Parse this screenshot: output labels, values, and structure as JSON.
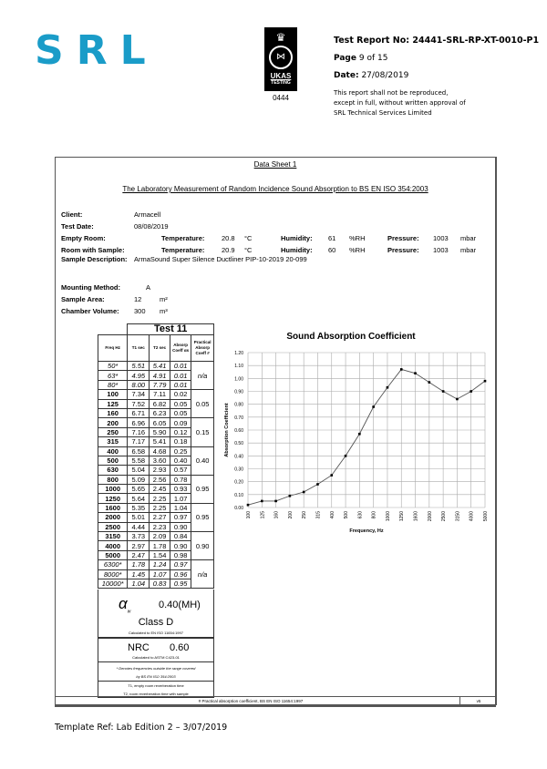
{
  "header": {
    "logo_text": "SRL",
    "ukas_text": "UKAS",
    "ukas_sub": "TESTING",
    "ukas_number": "0444",
    "report_no": "Test Report No: 24441-SRL-RP-XT-0010-P1",
    "page_label": "Page",
    "page_value": "9 of 15",
    "date_label": "Date:",
    "date_value": "27/08/2019",
    "disclaimer": [
      "This report shall not be reproduced,",
      "except in full, without written approval of",
      "SRL Technical Services Limited"
    ]
  },
  "sheet": {
    "title": "Data Sheet 1",
    "subtitle": "The Laboratory Measurement of Random Incidence Sound Absorption to BS EN ISO 354:2003",
    "client_label": "Client:",
    "client": "Armacell",
    "test_date_label": "Test Date:",
    "test_date": "08/08/2019",
    "empty_room_label": "Empty Room:",
    "room_sample_label": "Room with Sample:",
    "temp_label": "Temperature:",
    "hum_label": "Humidity:",
    "pres_label": "Pressure:",
    "temp_unit": "°C",
    "hum_unit": "%RH",
    "pres_unit": "mbar",
    "empty": {
      "temp": "20.8",
      "hum": "61",
      "pres": "1003"
    },
    "sample": {
      "temp": "20.9",
      "hum": "60",
      "pres": "1003"
    },
    "desc_label": "Sample Description:",
    "desc": "ArmaSound Super Silence Ductliner PIP-10-2019 20-099",
    "mount_label": "Mounting Method:",
    "mount": "A",
    "area_label": "Sample Area:",
    "area": "12",
    "area_unit": "m²",
    "vol_label": "Chamber Volume:",
    "vol": "300",
    "vol_unit": "m³"
  },
  "table": {
    "title": "Test 11",
    "headers": [
      "Freq Hz",
      "T1 sec",
      "T2 sec",
      "Absorp Coeff αs",
      "Practical Absorp Coeff #"
    ],
    "rows": [
      [
        "50*",
        "5.51",
        "5.41",
        "0.01"
      ],
      [
        "63*",
        "4.95",
        "4.91",
        "0.01"
      ],
      [
        "80*",
        "8.00",
        "7.79",
        "0.01"
      ],
      [
        "100",
        "7.34",
        "7.11",
        "0.02"
      ],
      [
        "125",
        "7.52",
        "6.82",
        "0.05"
      ],
      [
        "160",
        "6.71",
        "6.23",
        "0.05"
      ],
      [
        "200",
        "6.96",
        "6.05",
        "0.09"
      ],
      [
        "250",
        "7.16",
        "5.90",
        "0.12"
      ],
      [
        "315",
        "7.17",
        "5.41",
        "0.18"
      ],
      [
        "400",
        "6.58",
        "4.68",
        "0.25"
      ],
      [
        "500",
        "5.58",
        "3.60",
        "0.40"
      ],
      [
        "630",
        "5.04",
        "2.93",
        "0.57"
      ],
      [
        "800",
        "5.09",
        "2.56",
        "0.78"
      ],
      [
        "1000",
        "5.65",
        "2.45",
        "0.93"
      ],
      [
        "1250",
        "5.64",
        "2.25",
        "1.07"
      ],
      [
        "1600",
        "5.35",
        "2.25",
        "1.04"
      ],
      [
        "2000",
        "5.01",
        "2.27",
        "0.97"
      ],
      [
        "2500",
        "4.44",
        "2.23",
        "0.90"
      ],
      [
        "3150",
        "3.73",
        "2.09",
        "0.84"
      ],
      [
        "4000",
        "2.97",
        "1.78",
        "0.90"
      ],
      [
        "5000",
        "2.47",
        "1.54",
        "0.98"
      ],
      [
        "6300*",
        "1.78",
        "1.24",
        "0.97"
      ],
      [
        "8000*",
        "1.45",
        "1.07",
        "0.96"
      ],
      [
        "10000*",
        "1.04",
        "0.83",
        "0.95"
      ]
    ],
    "practical": [
      "n/a",
      "0.05",
      "0.15",
      "0.40",
      "0.95",
      "0.95",
      "0.90",
      "n/a"
    ],
    "alpha_symbol": "α",
    "alpha_sub": "w",
    "alpha_value": "0.40(MH)",
    "class": "Class D",
    "class_note": "Calculated to EN ISO 11654:1997",
    "nrc_label": "NRC",
    "nrc_value": "0.60",
    "nrc_note": "Calculated to ASTM C423-01",
    "note1": "* Denotes frequencies outside the range covered",
    "note2": "by BS EN ISO 354:2003",
    "note3": "T1, empty room reverberation time",
    "note4": "T2, room reverberation time with sample"
  },
  "footer": {
    "note": "# Practical absorption coefficient, BS EN ISO 11654:1997",
    "version": "v5",
    "template_ref": "Template Ref: Lab Edition 2 – 3/07/2019"
  },
  "chart_data": {
    "type": "line",
    "title": "Sound Absorption Coefficient",
    "xlabel": "Frequency, Hz",
    "ylabel": "Absorption Coefficient",
    "categories": [
      "100",
      "125",
      "160",
      "200",
      "250",
      "315",
      "400",
      "500",
      "630",
      "800",
      "1000",
      "1250",
      "1600",
      "2000",
      "2500",
      "3150",
      "4000",
      "5000"
    ],
    "values": [
      0.02,
      0.05,
      0.05,
      0.09,
      0.12,
      0.18,
      0.25,
      0.4,
      0.57,
      0.78,
      0.93,
      1.07,
      1.04,
      0.97,
      0.9,
      0.84,
      0.9,
      0.98
    ],
    "ylim": [
      0,
      1.2
    ],
    "yticks": [
      "0.00",
      "0.10",
      "0.20",
      "0.30",
      "0.40",
      "0.50",
      "0.60",
      "0.70",
      "0.80",
      "0.90",
      "1.00",
      "1.10",
      "1.20"
    ],
    "grid": true,
    "line_color": "#555555",
    "marker_color": "#000000"
  }
}
